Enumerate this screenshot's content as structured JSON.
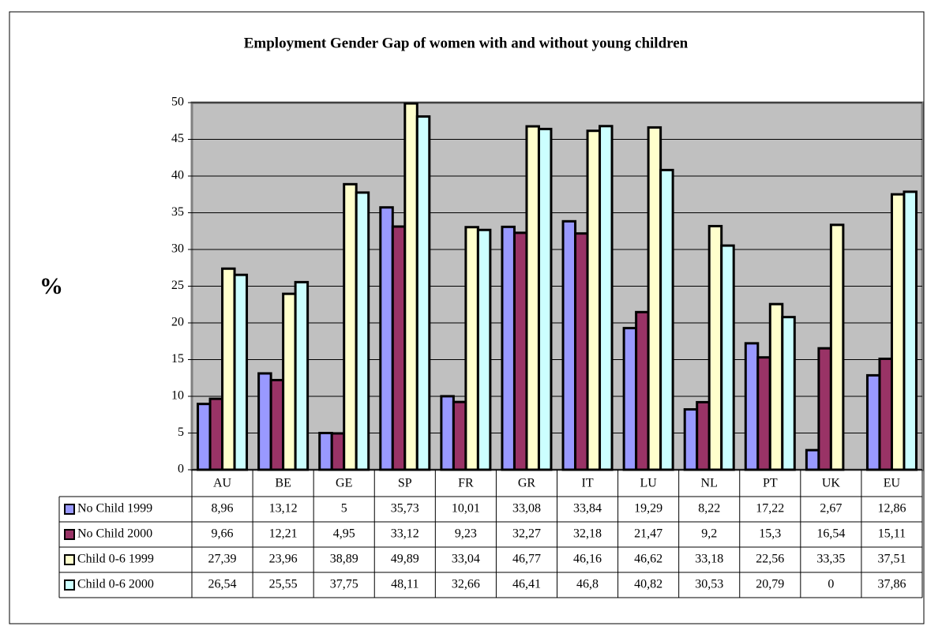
{
  "chart_data": {
    "type": "bar",
    "title": "Employment Gender Gap of women with and without young children",
    "y_label": "%",
    "categories": [
      "AU",
      "BE",
      "GE",
      "SP",
      "FR",
      "GR",
      "IT",
      "LU",
      "NL",
      "PT",
      "UK",
      "EU"
    ],
    "series": [
      {
        "name": "No Child 1999",
        "color": "#9999ff",
        "values": [
          8.96,
          13.12,
          5,
          35.73,
          10.01,
          33.08,
          33.84,
          19.29,
          8.22,
          17.22,
          2.67,
          12.86
        ],
        "value_labels": [
          "8,96",
          "13,12",
          "5",
          "35,73",
          "10,01",
          "33,08",
          "33,84",
          "19,29",
          "8,22",
          "17,22",
          "2,67",
          "12,86"
        ]
      },
      {
        "name": "No Child 2000",
        "color": "#993366",
        "values": [
          9.66,
          12.21,
          4.95,
          33.12,
          9.23,
          32.27,
          32.18,
          21.47,
          9.2,
          15.3,
          16.54,
          15.11
        ],
        "value_labels": [
          "9,66",
          "12,21",
          "4,95",
          "33,12",
          "9,23",
          "32,27",
          "32,18",
          "21,47",
          "9,2",
          "15,3",
          "16,54",
          "15,11"
        ]
      },
      {
        "name": "Child 0-6 1999",
        "color": "#ffffcc",
        "values": [
          27.39,
          23.96,
          38.89,
          49.89,
          33.04,
          46.77,
          46.16,
          46.62,
          33.18,
          22.56,
          33.35,
          37.51
        ],
        "value_labels": [
          "27,39",
          "23,96",
          "38,89",
          "49,89",
          "33,04",
          "46,77",
          "46,16",
          "46,62",
          "33,18",
          "22,56",
          "33,35",
          "37,51"
        ]
      },
      {
        "name": "Child 0-6 2000",
        "color": "#ccffff",
        "values": [
          26.54,
          25.55,
          37.75,
          48.11,
          32.66,
          46.41,
          46.8,
          40.82,
          30.53,
          20.79,
          0,
          37.86
        ],
        "value_labels": [
          "26,54",
          "25,55",
          "37,75",
          "48,11",
          "32,66",
          "46,41",
          "46,8",
          "40,82",
          "30,53",
          "20,79",
          "0",
          "37,86"
        ]
      }
    ],
    "ylim": [
      0,
      50
    ],
    "yticks": [
      0,
      5,
      10,
      15,
      20,
      25,
      30,
      35,
      40,
      45,
      50
    ],
    "grid": true,
    "plot_background": "#c0c0c0"
  }
}
